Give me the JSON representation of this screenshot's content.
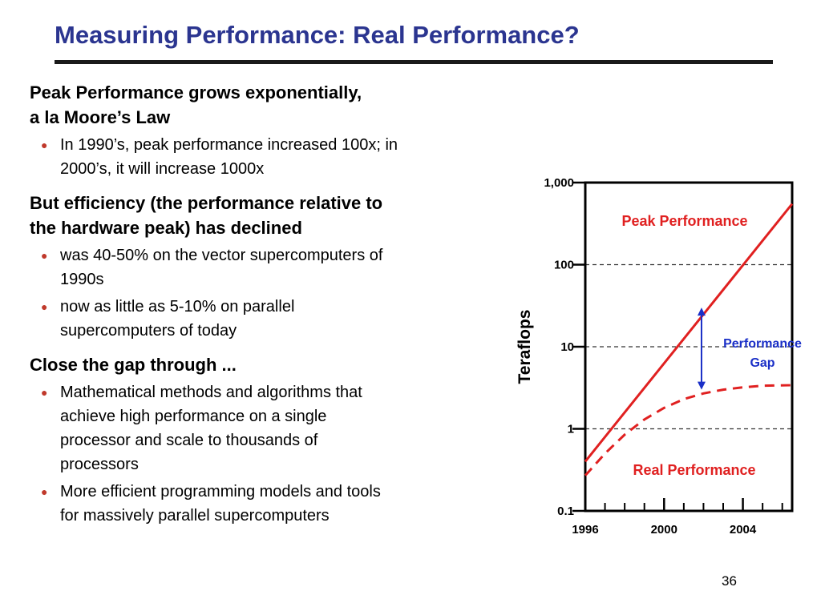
{
  "slide": {
    "title": "Measuring Performance: Real Performance?",
    "page_number": "36",
    "sections": [
      {
        "heading_lines": [
          "Peak Performance grows exponentially,",
          "a la Moore’s Law"
        ],
        "bullets": [
          {
            "lines": [
              "In 1990’s, peak performance increased 100x; in",
              "2000’s, it will increase 1000x"
            ]
          }
        ]
      },
      {
        "heading_lines": [
          "But efficiency (the performance relative to",
          "the hardware peak) has declined"
        ],
        "bullets": [
          {
            "lines": [
              "was 40-50% on the vector supercomputers of",
              "1990s"
            ]
          },
          {
            "lines": [
              "now as little as 5-10% on parallel",
              "supercomputers of today"
            ]
          }
        ]
      },
      {
        "heading_lines": [
          "Close the gap through ..."
        ],
        "bullets": [
          {
            "lines": [
              "Mathematical methods and algorithms that",
              "achieve high performance on a single",
              "processor and scale to thousands of",
              "processors"
            ]
          },
          {
            "lines": [
              "More efficient programming models and tools",
              "for massively parallel supercomputers"
            ]
          }
        ]
      }
    ]
  },
  "chart_data": {
    "type": "line",
    "ylabel": "Teraflops",
    "xlabel": "",
    "yscale": "log",
    "ylim": [
      0.1,
      1000
    ],
    "xlim": [
      1996,
      2006.5
    ],
    "y_ticks": [
      0.1,
      1,
      10,
      100,
      1000
    ],
    "y_tick_labels": [
      "0.1",
      "1",
      "10",
      "100",
      "1,000"
    ],
    "x_tick_labels": [
      "1996",
      "2000",
      "2004"
    ],
    "x_tick_values": [
      1996,
      2000,
      2004
    ],
    "x_minor_ticks": [
      1997,
      1998,
      1999,
      2001,
      2002,
      2003,
      2005,
      2006
    ],
    "grid_dashed_at": [
      1,
      10,
      100
    ],
    "series": [
      {
        "name": "Peak Performance",
        "style": "solid",
        "color": "#e02020",
        "x": [
          1996,
          2006.5
        ],
        "y": [
          0.4,
          550
        ]
      },
      {
        "name": "Real Performance",
        "style": "dashed",
        "color": "#e02020",
        "x": [
          1996,
          1997,
          1998,
          1999,
          2000,
          2001,
          2002,
          2003,
          2004,
          2005,
          2006.5
        ],
        "y": [
          0.27,
          0.5,
          0.85,
          1.3,
          1.8,
          2.3,
          2.7,
          3.0,
          3.2,
          3.35,
          3.4
        ]
      }
    ],
    "annotations": [
      {
        "text_lines": [
          "Performance",
          "Gap"
        ],
        "color": "#1a2fc7",
        "at_x": 2001.9,
        "from_y": 3.0,
        "to_y": 30
      }
    ]
  }
}
